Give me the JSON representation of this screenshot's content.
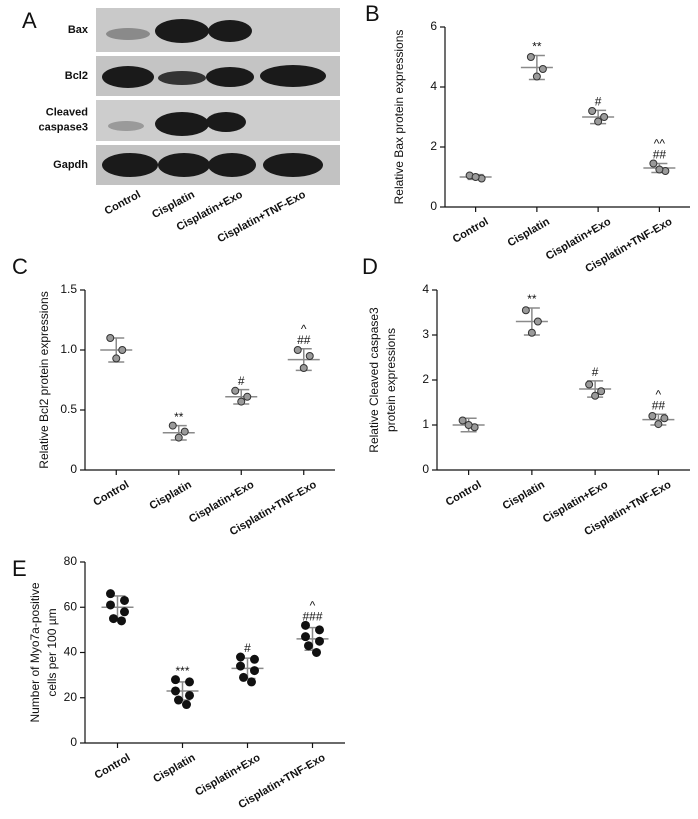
{
  "blot": {
    "panel": "A",
    "rows": [
      [
        "Bax"
      ],
      [
        "Bcl2"
      ],
      [
        "Cleaved",
        "caspase3"
      ],
      [
        "Gapdh"
      ]
    ],
    "lanes": [
      "Control",
      "Cisplatin",
      "Cisplatin+Exo",
      "Cisplatin+TNF-Exo"
    ]
  },
  "chart_data": [
    {
      "type": "dotplot",
      "panel": "B",
      "ylabel": [
        "Relative Bax protein expressions"
      ],
      "categories": [
        "Control",
        "Cisplatin",
        "Cisplatin+Exo",
        "Cisplatin+TNF-Exo"
      ],
      "ylim": [
        0,
        6
      ],
      "yticks": [
        0,
        2,
        4,
        6
      ],
      "marker": "open",
      "color": "#9a9a9a",
      "points": [
        [
          1.05,
          0.95,
          1.0
        ],
        [
          5.0,
          4.6,
          4.35
        ],
        [
          3.2,
          3.0,
          2.85
        ],
        [
          1.45,
          1.2,
          1.25
        ]
      ],
      "mean": [
        1.0,
        4.65,
        3.0,
        1.3
      ],
      "sd": [
        0.08,
        0.4,
        0.22,
        0.15
      ],
      "annotations": [
        [],
        [
          "**"
        ],
        [
          "#"
        ],
        [
          "^^",
          "##"
        ]
      ]
    },
    {
      "type": "dotplot",
      "panel": "C",
      "ylabel": [
        "Relative Bcl2 protein expressions"
      ],
      "categories": [
        "Control",
        "Cisplatin",
        "Cisplatin+Exo",
        "Cisplatin+TNF-Exo"
      ],
      "ylim": [
        0,
        1.5
      ],
      "yticks": [
        0,
        0.5,
        {
          "value": 1,
          "label": "1.0"
        },
        1.5
      ],
      "marker": "open",
      "color": "#9a9a9a",
      "points": [
        [
          1.1,
          1.0,
          0.93
        ],
        [
          0.37,
          0.32,
          0.27
        ],
        [
          0.66,
          0.61,
          0.57
        ],
        [
          1.0,
          0.95,
          0.85
        ]
      ],
      "mean": [
        1.0,
        0.31,
        0.61,
        0.92
      ],
      "sd": [
        0.1,
        0.06,
        0.06,
        0.09
      ],
      "annotations": [
        [],
        [
          "**"
        ],
        [
          "#"
        ],
        [
          "^",
          "##"
        ]
      ]
    },
    {
      "type": "dotplot",
      "panel": "D",
      "ylabel": [
        "Relative Cleaved caspase3",
        "protein expressions"
      ],
      "categories": [
        "Control",
        "Cisplatin",
        "Cisplatin+Exo",
        "Cisplatin+TNF-Exo"
      ],
      "ylim": [
        0,
        4
      ],
      "yticks": [
        0,
        1,
        2,
        3,
        4
      ],
      "marker": "open",
      "color": "#9a9a9a",
      "points": [
        [
          1.1,
          0.95,
          1.0
        ],
        [
          3.55,
          3.3,
          3.05
        ],
        [
          1.9,
          1.75,
          1.65
        ],
        [
          1.2,
          1.15,
          1.02
        ]
      ],
      "mean": [
        1.0,
        3.3,
        1.8,
        1.12
      ],
      "sd": [
        0.15,
        0.3,
        0.18,
        0.12
      ],
      "annotations": [
        [],
        [
          "**"
        ],
        [
          "#"
        ],
        [
          "^",
          "##"
        ]
      ]
    },
    {
      "type": "dotplot",
      "panel": "E",
      "ylabel": [
        "Number of Myo7a-positive",
        "cells per 100 µm"
      ],
      "categories": [
        "Control",
        "Cisplatin",
        "Cisplatin+Exo",
        "Cisplatin+TNF-Exo"
      ],
      "ylim": [
        0,
        80
      ],
      "yticks": [
        0,
        20,
        40,
        60,
        80
      ],
      "marker": "filled",
      "color": "#111111",
      "points": [
        [
          66,
          63,
          61,
          58,
          55,
          54
        ],
        [
          28,
          27,
          23,
          21,
          19,
          17
        ],
        [
          38,
          37,
          34,
          32,
          29,
          27
        ],
        [
          52,
          50,
          47,
          45,
          43,
          40
        ]
      ],
      "mean": [
        60,
        23,
        33,
        46
      ],
      "sd": [
        5,
        4,
        4.5,
        5
      ],
      "annotations": [
        [],
        [
          "***"
        ],
        [
          "#"
        ],
        [
          "^",
          "###"
        ]
      ]
    }
  ]
}
